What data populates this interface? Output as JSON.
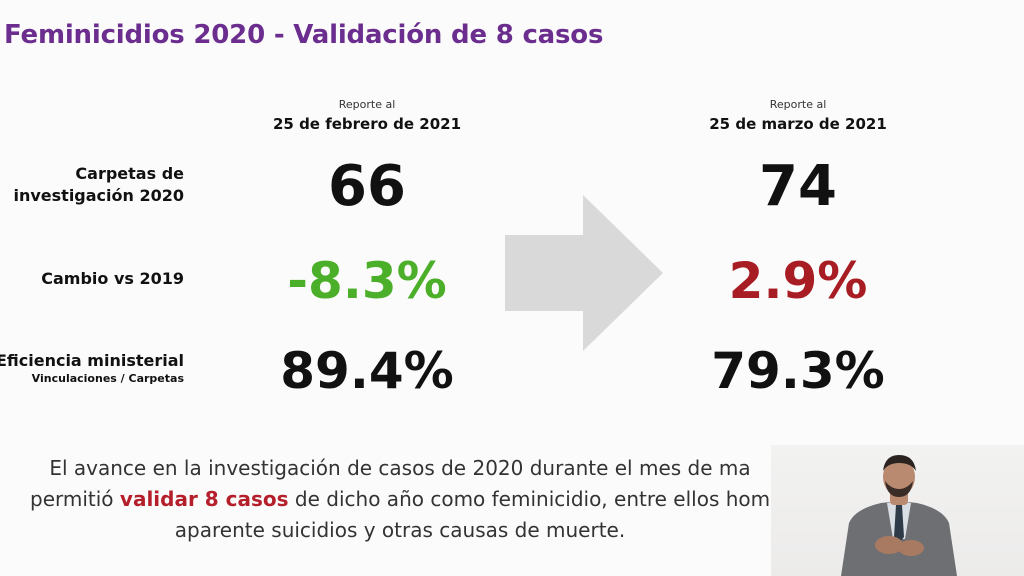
{
  "title": "Feminicidios 2020 - Validación de 8 casos",
  "columns": {
    "left": {
      "caption": "Reporte al",
      "date": "25 de febrero de 2021"
    },
    "right": {
      "caption": "Reporte al",
      "date": "25 de marzo de 2021"
    }
  },
  "rows": {
    "carpetas": {
      "label_line1": "Carpetas de",
      "label_line2": "investigación 2020",
      "left": "66",
      "right": "74"
    },
    "cambio": {
      "label": "Cambio vs 2019",
      "left": "-8.3%",
      "right": "2.9%"
    },
    "eficiencia": {
      "label": "Eficiencia ministerial",
      "sublabel": "Vinculaciones / Carpetas",
      "left": "89.4%",
      "right": "79.3%"
    }
  },
  "footer": {
    "line1": "El avance en la investigación de casos de 2020 durante el mes de ma",
    "line2_pre": "permitió ",
    "line2_highlight": "validar 8 casos",
    "line2_post": " de dicho año como feminicidio, entre ellos hom",
    "line3": "aparente suicidios y otras causas de muerte."
  },
  "colors": {
    "title": "#6b2d8e",
    "negative_change": "#4caf2a",
    "positive_change": "#a81c23",
    "arrow": "#d9d9d9",
    "highlight": "#b51f2b"
  },
  "icons": {
    "arrow": "right-arrow-icon"
  }
}
